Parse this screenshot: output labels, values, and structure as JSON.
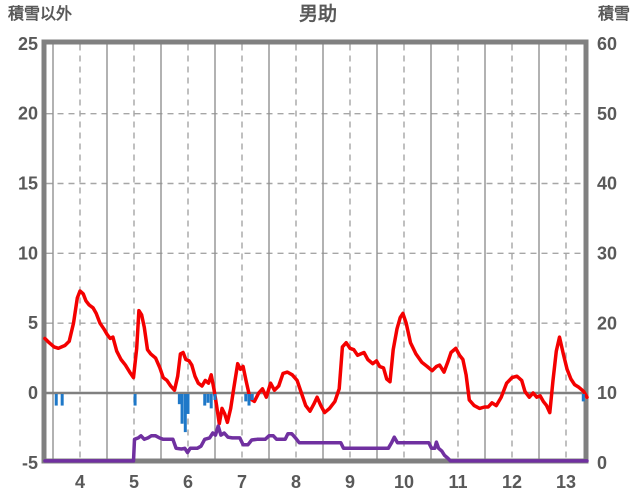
{
  "header": {
    "left_axis_title": "積雪以外",
    "title": "男助",
    "right_axis_title": "積雪"
  },
  "chart_data": {
    "type": "line",
    "title": "男助",
    "left_axis": {
      "label": "積雪以外",
      "min": -5,
      "max": 25,
      "ticks": [
        25,
        20,
        15,
        10,
        5,
        0,
        -5
      ],
      "grid_values": [
        20,
        15,
        10,
        5
      ],
      "zero_value": 0
    },
    "right_axis": {
      "label": "積雪",
      "min": 0,
      "max": 60,
      "ticks": [
        60,
        50,
        40,
        30,
        20,
        10,
        0
      ]
    },
    "x_axis": {
      "tick_labels": [
        "4",
        "5",
        "6",
        "7",
        "8",
        "9",
        "10",
        "11",
        "12",
        "13"
      ],
      "tick_days": [
        4,
        5,
        6,
        7,
        8,
        9,
        10,
        11,
        12,
        13
      ],
      "dashed_gridlines": [
        4,
        5,
        6,
        7,
        8,
        9,
        10,
        11,
        12,
        13
      ],
      "solid_gridlines": [
        3.5,
        4.5,
        5.5,
        6.5,
        7.5,
        8.5,
        9.5,
        10.5,
        11.5,
        12.5
      ],
      "domain": [
        3.34,
        13.42
      ]
    },
    "colors": {
      "red_line": "#f40000",
      "purple_line": "#7030a0",
      "blue_bars": "#1e78c8",
      "frame": "#808080",
      "grid_dashed": "#a6a6a6",
      "grid_solid": "#919191",
      "zero_line": "#808080",
      "text": "#595959",
      "background": "#ffffff"
    },
    "series": [
      {
        "name": "red-line",
        "kind": "line",
        "axis": "left",
        "color": "#f40000",
        "points": [
          [
            3.35,
            3.9
          ],
          [
            3.43,
            3.6
          ],
          [
            3.52,
            3.3
          ],
          [
            3.6,
            3.2
          ],
          [
            3.66,
            3.3
          ],
          [
            3.72,
            3.4
          ],
          [
            3.8,
            3.7
          ],
          [
            3.88,
            5.0
          ],
          [
            3.95,
            6.8
          ],
          [
            4.0,
            7.3
          ],
          [
            4.06,
            7.1
          ],
          [
            4.11,
            6.6
          ],
          [
            4.17,
            6.3
          ],
          [
            4.24,
            6.1
          ],
          [
            4.3,
            5.7
          ],
          [
            4.37,
            5.0
          ],
          [
            4.44,
            4.6
          ],
          [
            4.5,
            4.2
          ],
          [
            4.56,
            3.9
          ],
          [
            4.61,
            4.0
          ],
          [
            4.68,
            3.0
          ],
          [
            4.76,
            2.4
          ],
          [
            4.84,
            2.0
          ],
          [
            4.92,
            1.5
          ],
          [
            4.99,
            1.1
          ],
          [
            5.05,
            3.2
          ],
          [
            5.09,
            5.9
          ],
          [
            5.14,
            5.6
          ],
          [
            5.19,
            4.7
          ],
          [
            5.25,
            3.1
          ],
          [
            5.31,
            2.8
          ],
          [
            5.4,
            2.5
          ],
          [
            5.48,
            1.8
          ],
          [
            5.54,
            1.1
          ],
          [
            5.61,
            0.9
          ],
          [
            5.68,
            0.5
          ],
          [
            5.75,
            0.2
          ],
          [
            5.81,
            1.2
          ],
          [
            5.86,
            2.8
          ],
          [
            5.91,
            2.9
          ],
          [
            5.96,
            2.4
          ],
          [
            6.02,
            2.3
          ],
          [
            6.07,
            2.0
          ],
          [
            6.13,
            1.2
          ],
          [
            6.19,
            0.7
          ],
          [
            6.26,
            0.5
          ],
          [
            6.32,
            0.9
          ],
          [
            6.38,
            0.7
          ],
          [
            6.43,
            1.3
          ],
          [
            6.48,
            0.3
          ],
          [
            6.53,
            -0.9
          ],
          [
            6.58,
            -2.2
          ],
          [
            6.63,
            -1.1
          ],
          [
            6.68,
            -1.5
          ],
          [
            6.73,
            -2.1
          ],
          [
            6.79,
            -1.1
          ],
          [
            6.85,
            0.4
          ],
          [
            6.92,
            2.1
          ],
          [
            6.97,
            1.7
          ],
          [
            7.02,
            1.9
          ],
          [
            7.08,
            0.8
          ],
          [
            7.15,
            -0.4
          ],
          [
            7.23,
            -0.6
          ],
          [
            7.31,
            0.0
          ],
          [
            7.38,
            0.3
          ],
          [
            7.45,
            -0.3
          ],
          [
            7.53,
            0.7
          ],
          [
            7.6,
            0.2
          ],
          [
            7.68,
            0.5
          ],
          [
            7.76,
            1.4
          ],
          [
            7.84,
            1.5
          ],
          [
            7.93,
            1.3
          ],
          [
            8.02,
            0.9
          ],
          [
            8.1,
            0.0
          ],
          [
            8.18,
            -0.9
          ],
          [
            8.26,
            -1.3
          ],
          [
            8.33,
            -0.8
          ],
          [
            8.39,
            -0.3
          ],
          [
            8.46,
            -0.9
          ],
          [
            8.53,
            -1.4
          ],
          [
            8.62,
            -1.1
          ],
          [
            8.72,
            -0.6
          ],
          [
            8.8,
            0.3
          ],
          [
            8.86,
            3.3
          ],
          [
            8.93,
            3.6
          ],
          [
            9.0,
            3.2
          ],
          [
            9.07,
            3.1
          ],
          [
            9.14,
            2.7
          ],
          [
            9.2,
            2.8
          ],
          [
            9.26,
            2.9
          ],
          [
            9.33,
            2.4
          ],
          [
            9.42,
            2.1
          ],
          [
            9.49,
            2.3
          ],
          [
            9.55,
            1.9
          ],
          [
            9.62,
            1.8
          ],
          [
            9.68,
            1.0
          ],
          [
            9.74,
            0.8
          ],
          [
            9.8,
            3.1
          ],
          [
            9.87,
            4.6
          ],
          [
            9.93,
            5.4
          ],
          [
            9.98,
            5.7
          ],
          [
            10.04,
            5.0
          ],
          [
            10.12,
            3.6
          ],
          [
            10.22,
            2.8
          ],
          [
            10.33,
            2.2
          ],
          [
            10.43,
            1.9
          ],
          [
            10.52,
            1.6
          ],
          [
            10.6,
            1.9
          ],
          [
            10.66,
            2.0
          ],
          [
            10.74,
            1.5
          ],
          [
            10.81,
            2.2
          ],
          [
            10.87,
            2.9
          ],
          [
            10.96,
            3.2
          ],
          [
            11.03,
            2.7
          ],
          [
            11.09,
            2.4
          ],
          [
            11.15,
            1.3
          ],
          [
            11.21,
            -0.5
          ],
          [
            11.3,
            -0.9
          ],
          [
            11.4,
            -1.1
          ],
          [
            11.49,
            -1.0
          ],
          [
            11.56,
            -1.0
          ],
          [
            11.63,
            -0.7
          ],
          [
            11.71,
            -0.9
          ],
          [
            11.8,
            -0.3
          ],
          [
            11.9,
            0.7
          ],
          [
            12.0,
            1.1
          ],
          [
            12.09,
            1.2
          ],
          [
            12.18,
            0.9
          ],
          [
            12.24,
            0.1
          ],
          [
            12.32,
            -0.3
          ],
          [
            12.39,
            0.0
          ],
          [
            12.46,
            -0.3
          ],
          [
            12.52,
            -0.2
          ],
          [
            12.58,
            -0.6
          ],
          [
            12.64,
            -0.9
          ],
          [
            12.7,
            -1.4
          ],
          [
            12.76,
            0.9
          ],
          [
            12.82,
            3.0
          ],
          [
            12.88,
            4.0
          ],
          [
            12.95,
            2.8
          ],
          [
            13.02,
            1.7
          ],
          [
            13.09,
            1.0
          ],
          [
            13.16,
            0.6
          ],
          [
            13.24,
            0.4
          ],
          [
            13.33,
            0.1
          ],
          [
            13.41,
            -0.3
          ]
        ]
      },
      {
        "name": "purple-line",
        "kind": "line",
        "axis": "right",
        "color": "#7030a0",
        "points": [
          [
            3.35,
            0.3
          ],
          [
            4.99,
            0.3
          ],
          [
            5.01,
            3.4
          ],
          [
            5.08,
            3.6
          ],
          [
            5.13,
            3.9
          ],
          [
            5.19,
            3.4
          ],
          [
            5.26,
            3.6
          ],
          [
            5.32,
            3.9
          ],
          [
            5.4,
            3.9
          ],
          [
            5.47,
            3.6
          ],
          [
            5.54,
            3.4
          ],
          [
            5.72,
            3.4
          ],
          [
            5.78,
            2.1
          ],
          [
            5.88,
            2.0
          ],
          [
            5.94,
            2.1
          ],
          [
            5.99,
            1.5
          ],
          [
            6.04,
            2.1
          ],
          [
            6.17,
            2.1
          ],
          [
            6.24,
            2.4
          ],
          [
            6.31,
            3.4
          ],
          [
            6.4,
            3.6
          ],
          [
            6.46,
            4.3
          ],
          [
            6.51,
            4.0
          ],
          [
            6.56,
            5.3
          ],
          [
            6.61,
            4.0
          ],
          [
            6.67,
            4.3
          ],
          [
            6.74,
            3.7
          ],
          [
            6.82,
            3.6
          ],
          [
            6.96,
            3.6
          ],
          [
            7.02,
            2.6
          ],
          [
            7.11,
            2.6
          ],
          [
            7.18,
            3.3
          ],
          [
            7.28,
            3.4
          ],
          [
            7.43,
            3.4
          ],
          [
            7.5,
            3.9
          ],
          [
            7.58,
            3.9
          ],
          [
            7.64,
            3.4
          ],
          [
            7.8,
            3.4
          ],
          [
            7.85,
            4.2
          ],
          [
            7.92,
            4.2
          ],
          [
            7.99,
            3.6
          ],
          [
            8.06,
            2.9
          ],
          [
            8.83,
            2.9
          ],
          [
            8.88,
            2.1
          ],
          [
            9.71,
            2.1
          ],
          [
            9.77,
            2.9
          ],
          [
            9.82,
            3.7
          ],
          [
            9.88,
            2.9
          ],
          [
            10.46,
            2.9
          ],
          [
            10.51,
            2.1
          ],
          [
            10.57,
            2.1
          ],
          [
            10.6,
            3.0
          ],
          [
            10.64,
            2.1
          ],
          [
            10.7,
            1.7
          ],
          [
            10.75,
            1.1
          ],
          [
            10.81,
            0.7
          ],
          [
            10.86,
            0.3
          ],
          [
            13.4,
            0.3
          ]
        ]
      },
      {
        "name": "blue-bars",
        "kind": "bars",
        "axis": "left",
        "color": "#1e78c8",
        "bars": [
          [
            3.56,
            0.9
          ],
          [
            3.67,
            0.9
          ],
          [
            5.02,
            0.9
          ],
          [
            5.84,
            0.8
          ],
          [
            5.89,
            2.2
          ],
          [
            5.95,
            2.8
          ],
          [
            6.0,
            1.5
          ],
          [
            6.31,
            0.9
          ],
          [
            6.37,
            0.7
          ],
          [
            6.43,
            1.1
          ],
          [
            6.5,
            0.5
          ],
          [
            7.07,
            0.6
          ],
          [
            7.13,
            0.9
          ],
          [
            7.19,
            0.5
          ],
          [
            13.32,
            0.6
          ]
        ]
      }
    ]
  }
}
